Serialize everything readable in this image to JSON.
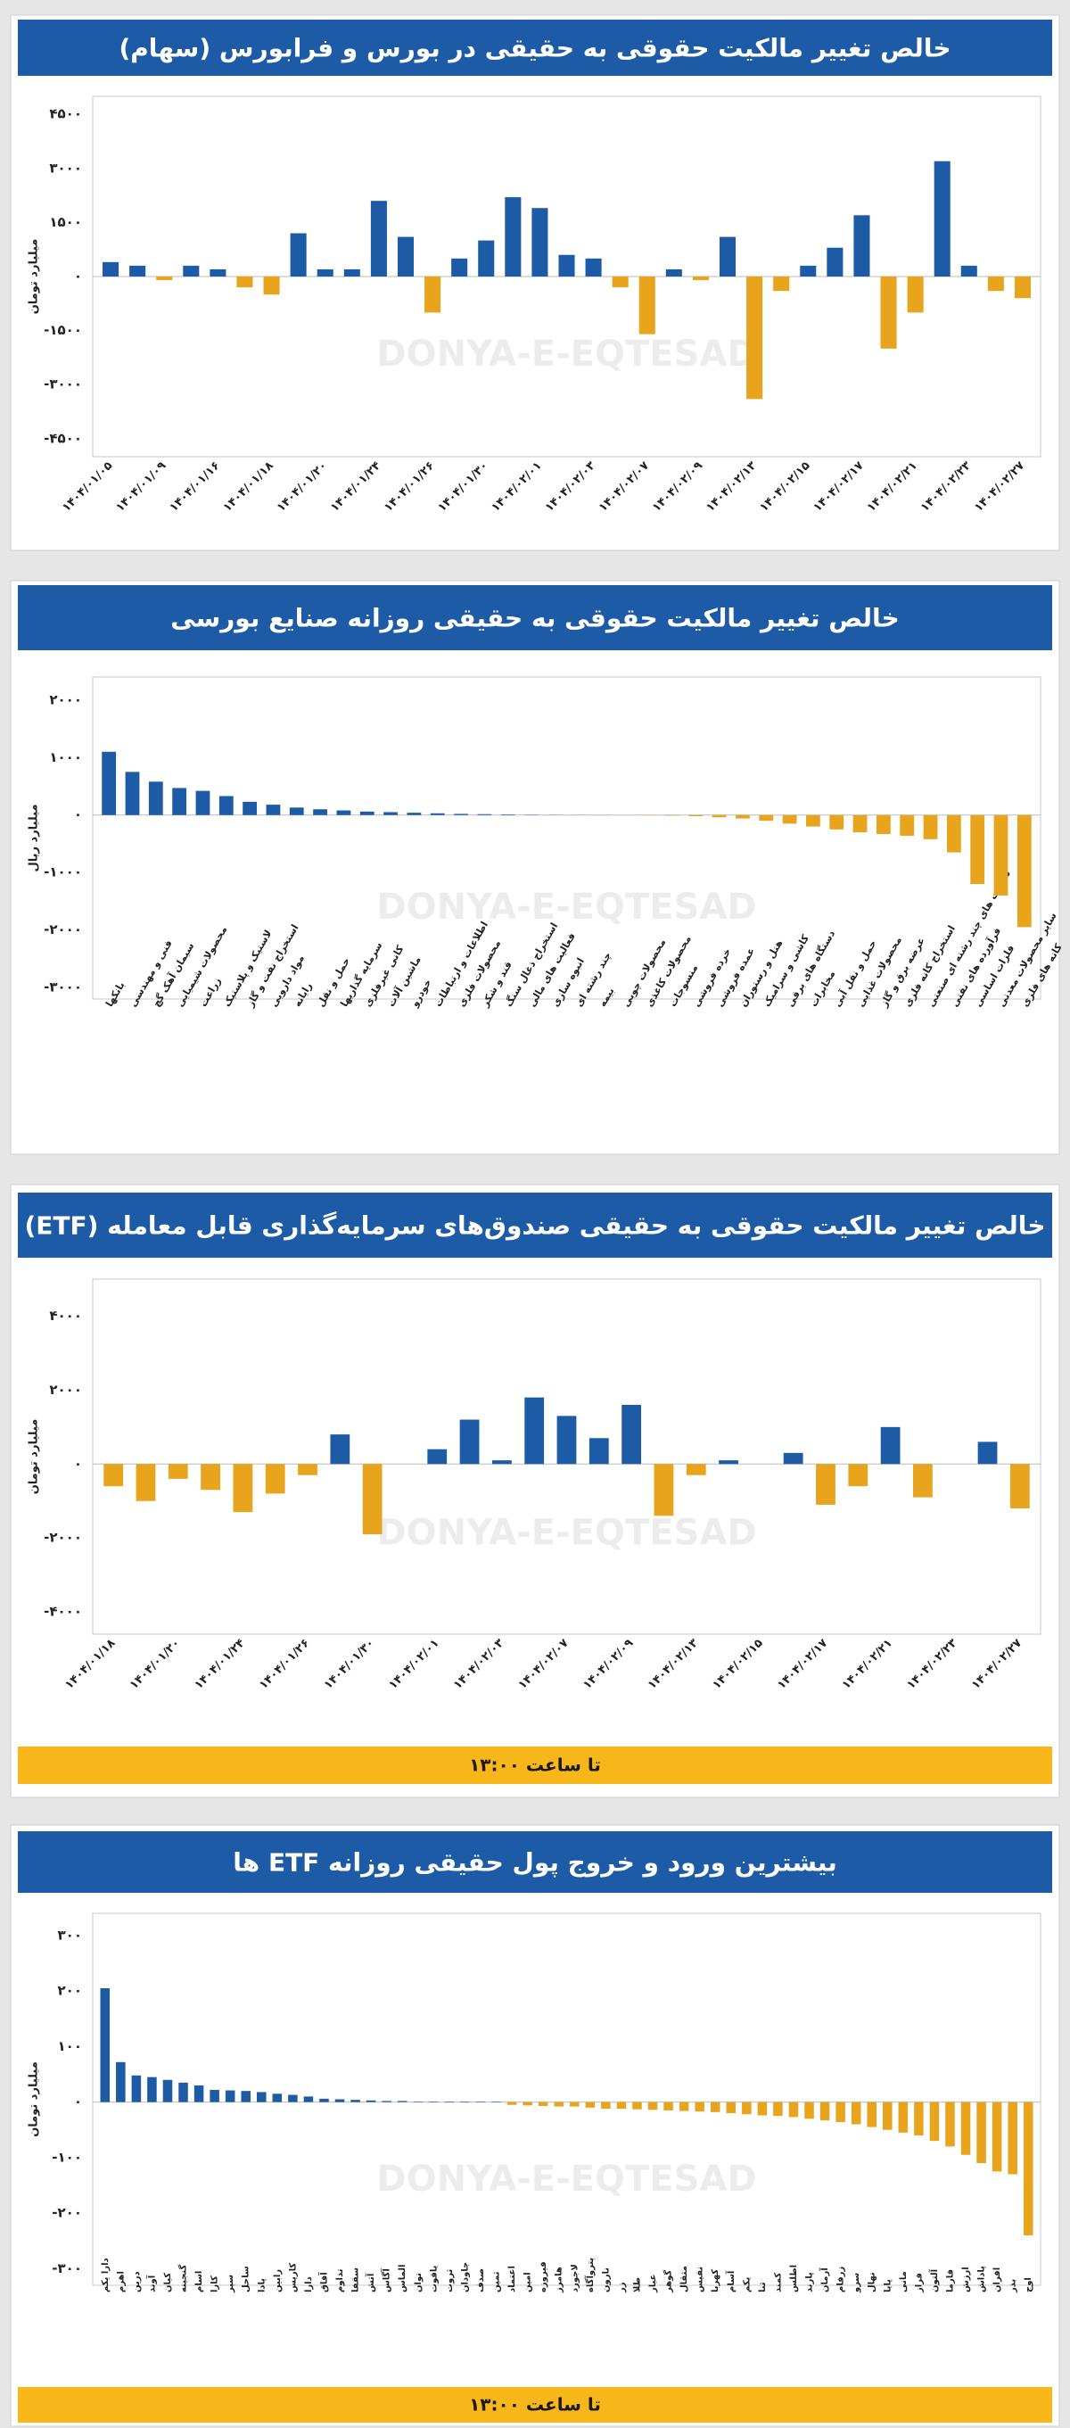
{
  "chart_data": [
    {
      "type": "bar",
      "title": "خالص تغییر مالکیت حقوقی به حقیقی در بورس و فرابورس (سهام)",
      "ylabel": "میلیارد تومان",
      "watermark": "DONYA-E-EQTESAD",
      "categories": [
        "۱۴۰۴/۰۱/۰۵",
        null,
        "۱۴۰۴/۰۱/۰۹",
        null,
        "۱۴۰۴/۰۱/۱۶",
        null,
        "۱۴۰۴/۰۱/۱۸",
        null,
        "۱۴۰۴/۰۱/۲۰",
        null,
        "۱۴۰۴/۰۱/۲۴",
        null,
        "۱۴۰۴/۰۱/۲۶",
        null,
        "۱۴۰۴/۰۱/۳۰",
        null,
        "۱۴۰۴/۰۲/۰۱",
        null,
        "۱۴۰۴/۰۲/۰۳",
        null,
        "۱۴۰۴/۰۲/۰۷",
        null,
        "۱۴۰۴/۰۲/۰۹",
        null,
        "۱۴۰۴/۰۲/۱۳",
        null,
        "۱۴۰۴/۰۲/۱۵",
        null,
        "۱۴۰۴/۰۲/۱۷",
        null,
        "۱۴۰۴/۰۲/۲۱",
        null,
        "۱۴۰۴/۰۲/۲۳",
        null,
        "۱۴۰۴/۰۲/۲۷"
      ],
      "values": [
        400,
        300,
        -100,
        300,
        200,
        -300,
        -500,
        1200,
        200,
        200,
        2100,
        1100,
        -1000,
        500,
        1000,
        2200,
        1900,
        600,
        500,
        -300,
        -1600,
        200,
        -100,
        1100,
        -3400,
        -400,
        300,
        800,
        1700,
        -2000,
        -1000,
        3200,
        300,
        -400,
        -600
      ],
      "colors": {
        "positive": "#1e5ba6",
        "negative": "#e8a41c"
      },
      "ylim": [
        -5000,
        5000
      ],
      "yticks": [
        {
          "value": -4500,
          "label": "-۴۵۰۰"
        },
        {
          "value": -3000,
          "label": "-۳۰۰۰"
        },
        {
          "value": -1500,
          "label": "-۱۵۰۰"
        },
        {
          "value": 0,
          "label": "۰"
        },
        {
          "value": 1500,
          "label": "۱۵۰۰"
        },
        {
          "value": 3000,
          "label": "۳۰۰۰"
        },
        {
          "value": 4500,
          "label": "۴۵۰۰"
        }
      ]
    },
    {
      "type": "bar",
      "title": "خالص تغییر مالکیت حقوقی به حقیقی روزانه صنایع بورسی",
      "ylabel": "میلیارد ریال",
      "watermark": "DONYA-E-EQTESAD",
      "categories": [
        "بانکها",
        "فنی و مهندسی",
        "سیمان آهک گچ",
        "محصولات شیمیایی",
        "زراعت",
        "لاستیک و پلاستیک",
        "استخراج نفت و گاز",
        "مواد دارویی",
        "رایانه",
        "حمل و نقل",
        "سرمایه گذاریها",
        "کانی غیرفلزی",
        "ماشین آلات",
        "خودرو",
        "اطلاعات و ارتباطات",
        "محصولات فلزی",
        "قند و شکر",
        "استخراج ذغال سنگ",
        "فعالیت های مالی",
        "انبوه سازی",
        "چند رشته ای",
        "بیمه",
        "محصولات چوبی",
        "محصولات کاغذی",
        "منسوجات",
        "خرده فروشی",
        "عمده فروشی",
        "هتل و رستوران",
        "کاشی و سرامیک",
        "دستگاه های برقی",
        "مخابرات",
        "حمل و نقل آبی",
        "محصولات غذایی",
        "عرضه برق و گاز",
        "استخراج کانه فلزی",
        "شرکت های چند رشته ای صنعتی",
        "فرآورده های نفتی",
        "فلزات اساسی",
        "سایر محصولات معدنی",
        "کانه های فلزی"
      ],
      "values": [
        1100,
        750,
        580,
        470,
        420,
        330,
        230,
        180,
        130,
        100,
        80,
        60,
        50,
        40,
        30,
        20,
        15,
        10,
        5,
        3,
        2,
        1,
        0,
        -5,
        -10,
        -20,
        -40,
        -60,
        -100,
        -150,
        -200,
        -250,
        -300,
        -330,
        -360,
        -420,
        -650,
        -1200,
        -1400,
        -1950
      ],
      "colors": {
        "positive": "#1e5ba6",
        "negative": "#e8a41c"
      },
      "ylim": [
        -3200,
        2400
      ],
      "yticks": [
        {
          "value": -3000,
          "label": "-۳۰۰۰"
        },
        {
          "value": -2000,
          "label": "-۲۰۰۰"
        },
        {
          "value": -1000,
          "label": "-۱۰۰۰"
        },
        {
          "value": 0,
          "label": "۰"
        },
        {
          "value": 1000,
          "label": "۱۰۰۰"
        },
        {
          "value": 2000,
          "label": "۲۰۰۰"
        }
      ]
    },
    {
      "type": "bar",
      "title": "خالص تغییر مالکیت حقوقی به حقیقی صندوق‌های سرمایه‌گذاری قابل معامله (ETF)",
      "ylabel": "میلیارد تومان",
      "watermark": "DONYA-E-EQTESAD",
      "footer": "تا ساعت ۱۳:۰۰",
      "categories": [
        "۱۴۰۴/۰۱/۱۸",
        null,
        "۱۴۰۴/۰۱/۲۰",
        null,
        "۱۴۰۴/۰۱/۲۴",
        null,
        "۱۴۰۴/۰۱/۲۶",
        null,
        "۱۴۰۴/۰۱/۳۰",
        null,
        "۱۴۰۴/۰۲/۰۱",
        null,
        "۱۴۰۴/۰۲/۰۳",
        null,
        "۱۴۰۴/۰۲/۰۷",
        null,
        "۱۴۰۴/۰۲/۰۹",
        null,
        "۱۴۰۴/۰۲/۱۳",
        null,
        "۱۴۰۴/۰۲/۱۵",
        null,
        "۱۴۰۴/۰۲/۱۷",
        null,
        "۱۴۰۴/۰۲/۲۱",
        null,
        "۱۴۰۴/۰۲/۲۳",
        null,
        "۱۴۰۴/۰۲/۲۷"
      ],
      "values": [
        -600,
        -1000,
        -400,
        -700,
        -1300,
        -800,
        -300,
        800,
        -1900,
        0,
        400,
        1200,
        100,
        1800,
        1300,
        700,
        1600,
        -1400,
        -300,
        100,
        0,
        300,
        -1100,
        -600,
        1000,
        -900,
        0,
        600,
        -1200
      ],
      "colors": {
        "positive": "#1e5ba6",
        "negative": "#e8a41c"
      },
      "ylim": [
        -4600,
        5000
      ],
      "yticks": [
        {
          "value": -4000,
          "label": "-۴۰۰۰"
        },
        {
          "value": -2000,
          "label": "-۲۰۰۰"
        },
        {
          "value": 0,
          "label": "۰"
        },
        {
          "value": 2000,
          "label": "۲۰۰۰"
        },
        {
          "value": 4000,
          "label": "۴۰۰۰"
        }
      ]
    },
    {
      "type": "bar",
      "title": "بیشترین ورود و خروج پول حقیقی روزانه ETF ها",
      "ylabel": "میلیارد تومان",
      "watermark": "DONYA-E-EQTESAD",
      "footer": "تا ساعت ۱۳:۰۰",
      "categories": [
        "دارا یکم",
        "اهرم",
        "درین",
        "آوند",
        "کیان",
        "گنجینه",
        "اسام",
        "کارا",
        "سپر",
        "ساحل",
        "پادا",
        "رابین",
        "کاریس",
        "دارا",
        "آفاق",
        "تداوم",
        "سقفا",
        "آتش",
        "آگاس",
        "الماس",
        "توان",
        "یاقوت",
        "ثروت",
        "جاودان",
        "صدف",
        "ثمین",
        "اعتماد",
        "امین",
        "فیروزه",
        "هامرز",
        "لاجورد",
        "پتروآگاه",
        "نارون",
        "زر",
        "طلا",
        "عیار",
        "گوهر",
        "مثقال",
        "نفیس",
        "کهربا",
        "آسام",
        "یکم",
        "ثنا",
        "کمند",
        "اطلس",
        "پارند",
        "آرمان",
        "زرفام",
        "سرو",
        "نهال",
        "پایا",
        "مانی",
        "فراز",
        "آلتون",
        "فارما",
        "ارزش",
        "پاداش",
        "افران",
        "بذر",
        "اوج"
      ],
      "values": [
        205,
        72,
        48,
        45,
        40,
        35,
        30,
        22,
        21,
        20,
        18,
        15,
        13,
        10,
        6,
        5,
        4,
        3,
        2,
        2,
        1,
        1,
        1,
        1,
        1,
        1,
        -5,
        -6,
        -7,
        -8,
        -8,
        -10,
        -12,
        -12,
        -13,
        -14,
        -15,
        -16,
        -17,
        -18,
        -20,
        -22,
        -24,
        -25,
        -27,
        -30,
        -33,
        -36,
        -40,
        -45,
        -50,
        -55,
        -60,
        -70,
        -80,
        -95,
        -110,
        -125,
        -130,
        -240
      ],
      "colors": {
        "positive": "#1e5ba6",
        "negative": "#e8a41c"
      },
      "ylim": [
        -330,
        340
      ],
      "yticks": [
        {
          "value": -300,
          "label": "-۳۰۰"
        },
        {
          "value": -200,
          "label": "-۲۰۰"
        },
        {
          "value": -100,
          "label": "-۱۰۰"
        },
        {
          "value": 0,
          "label": "۰"
        },
        {
          "value": 100,
          "label": "۱۰۰"
        },
        {
          "value": 200,
          "label": "۲۰۰"
        },
        {
          "value": 300,
          "label": "۳۰۰"
        }
      ]
    }
  ]
}
